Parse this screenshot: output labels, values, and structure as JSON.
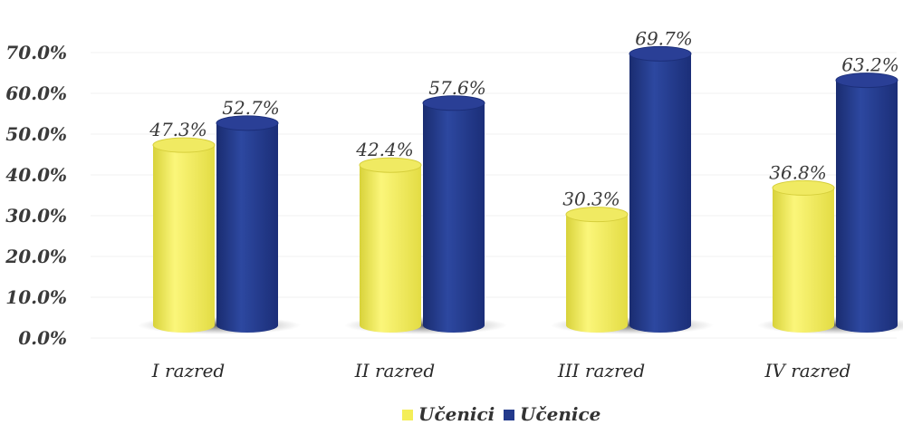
{
  "chart_data": {
    "type": "bar",
    "title": "",
    "xlabel": "",
    "ylabel": "",
    "categories": [
      "I razred",
      "II razred",
      "III razred",
      "IV razred"
    ],
    "series": [
      {
        "name": "Učenici",
        "values": [
          47.3,
          42.4,
          30.3,
          36.8
        ],
        "labels": [
          "47.3%",
          "42.4%",
          "30.3%",
          "36.8%"
        ],
        "color": "#f4ee58"
      },
      {
        "name": "Učenice",
        "values": [
          52.7,
          57.6,
          69.7,
          63.2
        ],
        "labels": [
          "52.7%",
          "57.6%",
          "69.7%",
          "63.2%"
        ],
        "color": "#233a8c"
      }
    ],
    "y_ticks": [
      "0.0%",
      "10.0%",
      "20.0%",
      "30.0%",
      "40.0%",
      "50.0%",
      "60.0%",
      "70.0%"
    ],
    "ylim": [
      0,
      70
    ],
    "bar_style": "3d-cylinder",
    "grid": true,
    "legend_position": "bottom-center"
  }
}
